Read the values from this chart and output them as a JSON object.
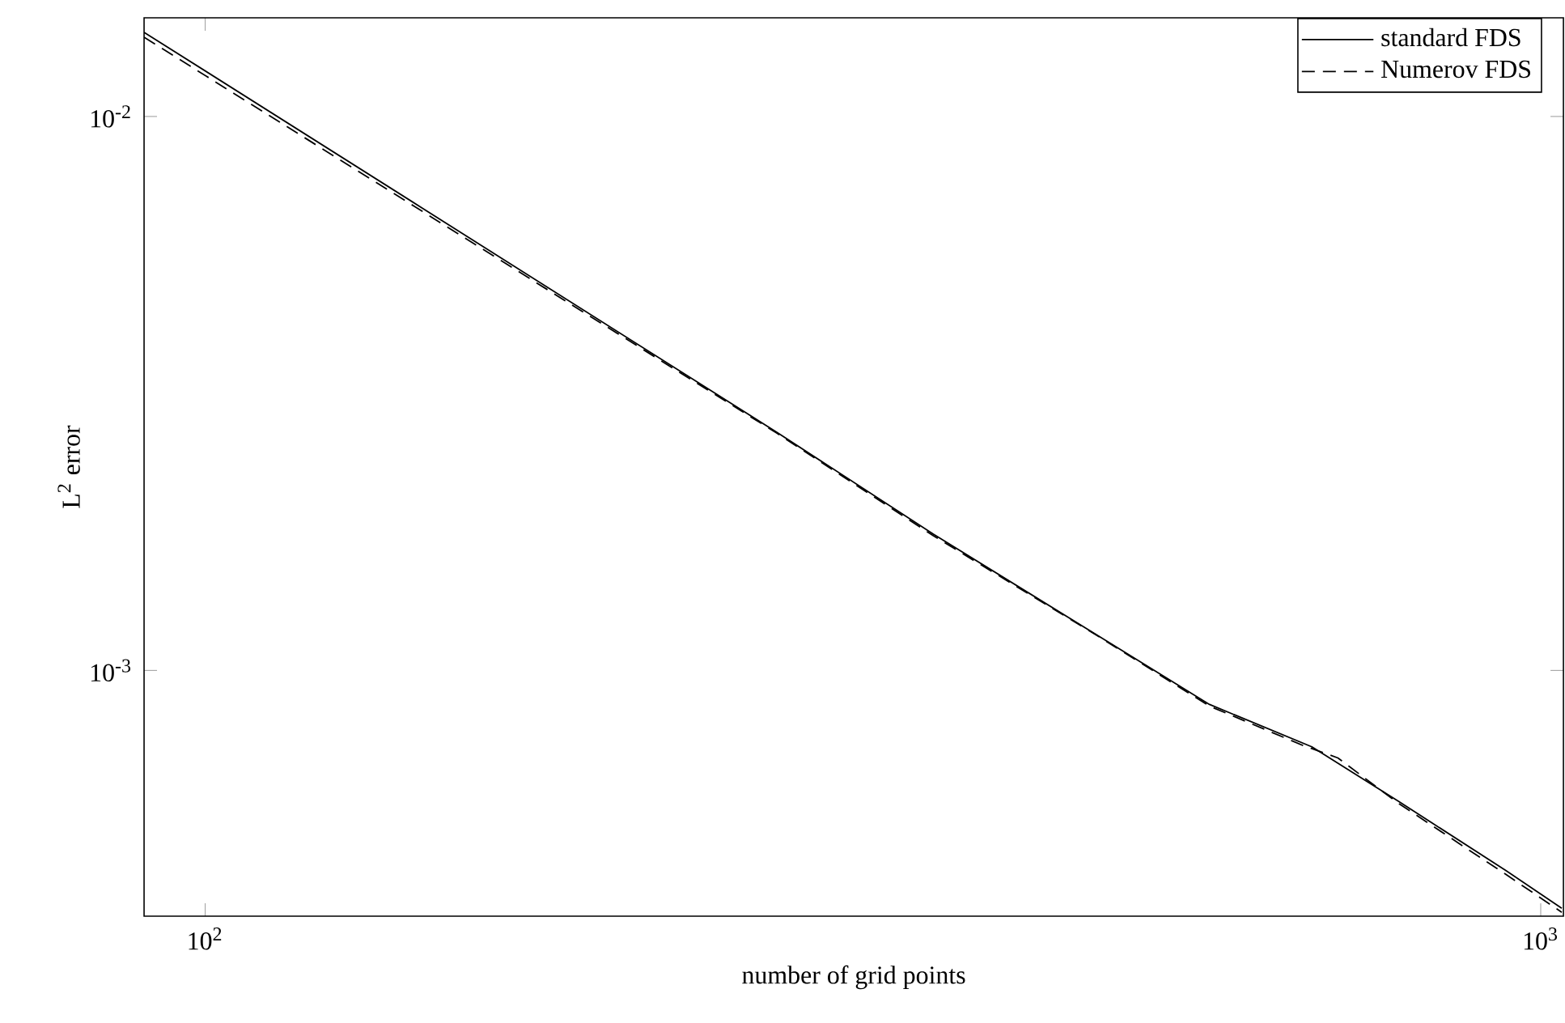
{
  "chart_data": {
    "type": "line",
    "xlabel": "number of grid points",
    "ylabel": "L$^{2}$ error",
    "log": "xy",
    "grid": false,
    "legend": "top right",
    "marker": "none",
    "xlim": [
      90,
      1040
    ],
    "ylim": [
      0.00036,
      0.01507
    ],
    "xticks": [
      {
        "value": 100,
        "label": "10$^{2}$"
      },
      {
        "value": 1000,
        "label": "10$^{3}$"
      }
    ],
    "yticks": [
      {
        "value": 0.001,
        "label": "10$^{-3}$"
      },
      {
        "value": 0.01,
        "label": "10$^{-2}$"
      }
    ],
    "series": [
      {
        "name": "standard FDS",
        "color": "#000000",
        "line_style": "solid",
        "x": [
          90,
          268,
          351,
          467,
          565,
          674,
          783,
          942,
          1037
        ],
        "values": [
          0.01419,
          0.00269,
          0.001762,
          0.001152,
          0.000868,
          0.000728,
          0.00058,
          0.000435,
          0.000372
        ]
      },
      {
        "name": "Numerov FDS",
        "color": "#000000",
        "line_style": "dashed",
        "x": [
          90,
          268,
          351,
          467,
          565,
          663,
          705,
          783,
          942,
          1037
        ],
        "values": [
          0.0139,
          0.00268,
          0.00175,
          0.00115,
          0.000862,
          0.000733,
          0.000695,
          0.000575,
          0.000428,
          0.000366
        ]
      }
    ]
  }
}
